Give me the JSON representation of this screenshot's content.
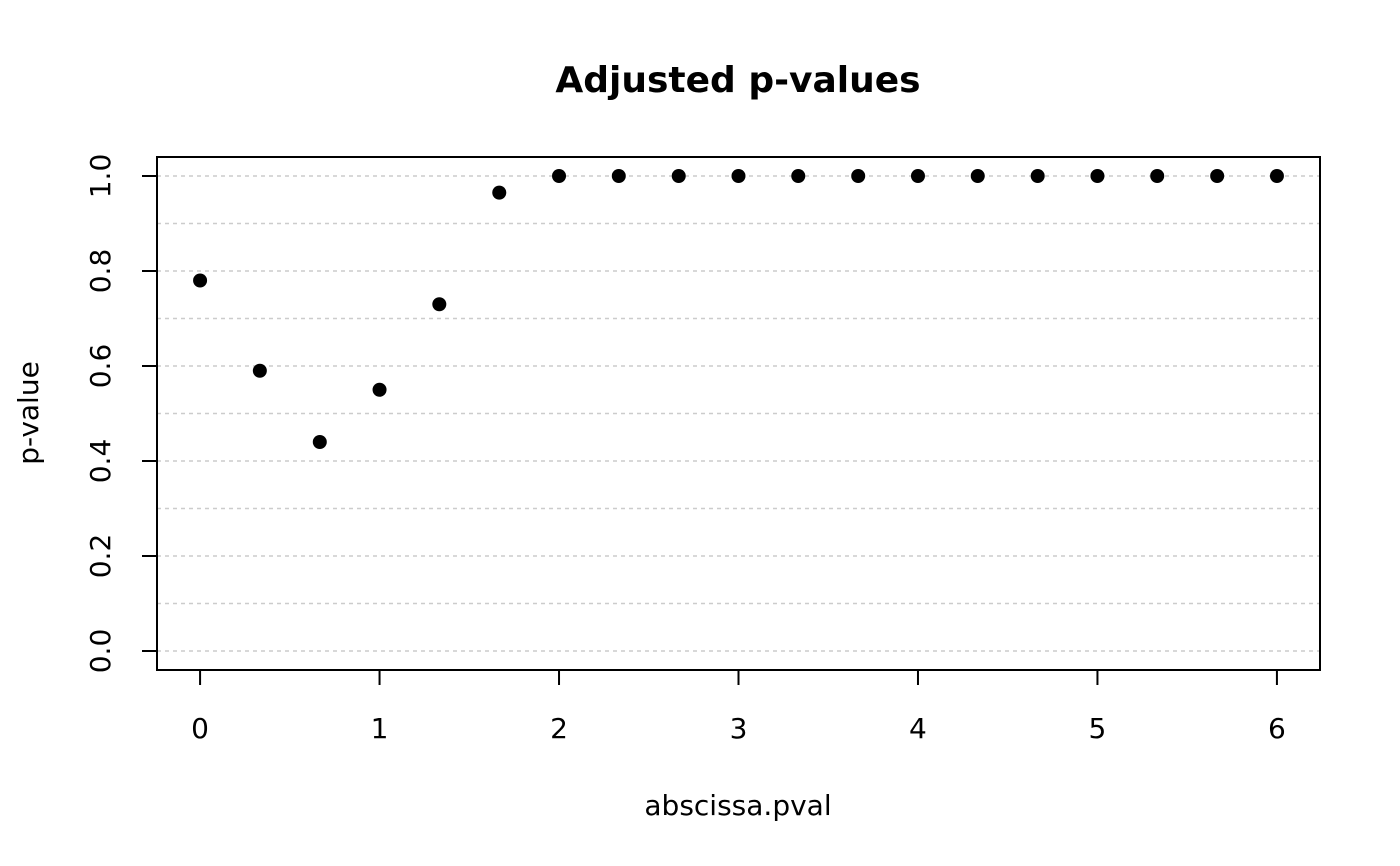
{
  "chart_data": {
    "type": "scatter",
    "title": "Adjusted p-values",
    "xlabel": "abscissa.pval",
    "ylabel": "p-value",
    "xlim": [
      -0.24,
      6.24
    ],
    "ylim": [
      -0.04,
      1.04
    ],
    "xticks": [
      "0",
      "1",
      "2",
      "3",
      "4",
      "5",
      "6"
    ],
    "yticks": [
      "0.0",
      "0.2",
      "0.4",
      "0.6",
      "0.8",
      "1.0"
    ],
    "grid": "horizontal dotted, every 0.1",
    "series": [
      {
        "x": [
          0,
          0.333,
          0.667,
          1,
          1.333,
          1.667,
          2,
          2.333,
          2.667,
          3,
          3.333,
          3.667,
          4,
          4.333,
          4.667,
          5,
          5.333,
          5.667,
          6
        ],
        "y": [
          0.78,
          0.59,
          0.44,
          0.55,
          0.73,
          0.965,
          1,
          1,
          1,
          1,
          1,
          1,
          1,
          1,
          1,
          1,
          1,
          1,
          1
        ]
      }
    ]
  }
}
